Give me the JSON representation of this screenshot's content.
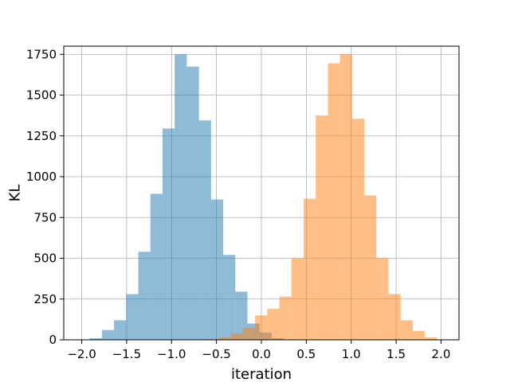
{
  "chart_data": {
    "type": "bar",
    "title": "",
    "xlabel": "iteration",
    "ylabel": "KL",
    "xlim": [
      -2.2,
      2.2
    ],
    "ylim": [
      0,
      1800
    ],
    "grid": true,
    "legend": "none",
    "bin_width": 0.135,
    "x_ticks": [
      -2.0,
      -1.5,
      -1.0,
      -0.5,
      0.0,
      0.5,
      1.0,
      1.5,
      2.0
    ],
    "x_tick_labels": [
      "−2.0",
      "−1.5",
      "−1.0",
      "−0.5",
      "0.0",
      "0.5",
      "1.0",
      "1.5",
      "2.0"
    ],
    "y_ticks": [
      0,
      250,
      500,
      750,
      1000,
      1250,
      1500,
      1750
    ],
    "y_tick_labels": [
      "0",
      "250",
      "500",
      "750",
      "1000",
      "1250",
      "1500",
      "1750"
    ],
    "series": [
      {
        "color": "#1f77b4",
        "opacity": 0.5,
        "bin_starts": [
          -1.91,
          -1.775,
          -1.64,
          -1.505,
          -1.37,
          -1.235,
          -1.1,
          -0.965,
          -0.83,
          -0.695,
          -0.56,
          -0.425,
          -0.29,
          -0.155,
          -0.02,
          0.115
        ],
        "values": [
          10,
          60,
          120,
          280,
          540,
          895,
          1295,
          1750,
          1675,
          1345,
          860,
          520,
          295,
          100,
          45,
          10
        ]
      },
      {
        "color": "#ff7f0e",
        "opacity": 0.5,
        "bin_starts": [
          -0.61,
          -0.475,
          -0.34,
          -0.205,
          -0.07,
          0.065,
          0.2,
          0.335,
          0.47,
          0.605,
          0.74,
          0.875,
          1.01,
          1.145,
          1.28,
          1.415,
          1.55,
          1.685,
          1.82
        ],
        "values": [
          5,
          15,
          40,
          75,
          150,
          190,
          265,
          500,
          865,
          1375,
          1695,
          1750,
          1355,
          885,
          500,
          280,
          120,
          55,
          15
        ]
      }
    ]
  }
}
